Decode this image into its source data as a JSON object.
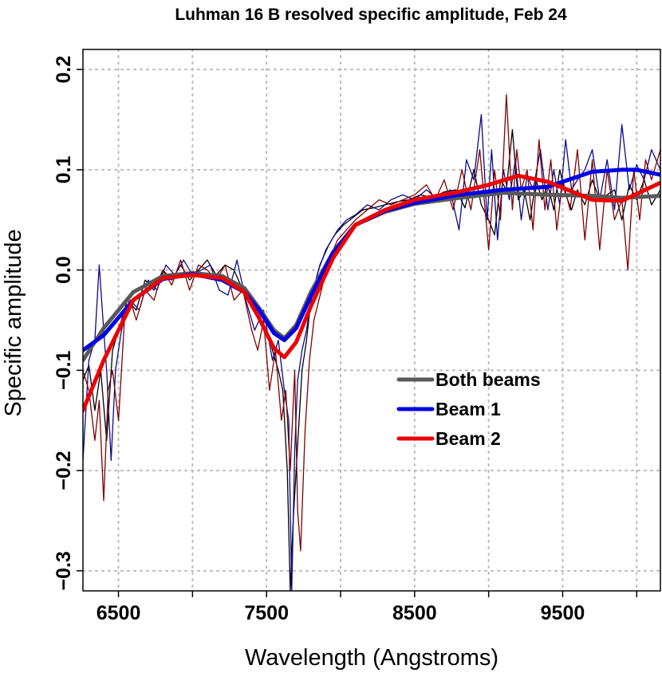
{
  "chart_data": {
    "type": "line",
    "title": "Luhman 16 B resolved specific amplitude, Feb 24",
    "xlabel": "Wavelength (Angstroms)",
    "ylabel": "Specific amplitude",
    "xlim": [
      6260,
      10160
    ],
    "ylim": [
      -0.32,
      0.22
    ],
    "x_ticks": [
      6500,
      7500,
      8500,
      9500
    ],
    "x_tick_labels": [
      "6500",
      "7500",
      "8500",
      "9500"
    ],
    "x_minor_ticks": [
      7000,
      8000,
      9000,
      10000
    ],
    "y_ticks": [
      -0.3,
      -0.2,
      -0.1,
      0.0,
      0.1,
      0.2
    ],
    "y_tick_labels": [
      "−0.3",
      "−0.2",
      "−0.1",
      "0.0",
      "0.1",
      "0.2"
    ],
    "grid": true,
    "legend": {
      "placement": "center-right",
      "entries": [
        {
          "label": "Both beams",
          "color": "#595959"
        },
        {
          "label": "Beam 1",
          "color": "#0000e6"
        },
        {
          "label": "Beam 2",
          "color": "#ee0000"
        }
      ]
    },
    "series": [
      {
        "name": "Both beams",
        "color": "#595959",
        "style": "smooth-thick",
        "x": [
          6260,
          6400,
          6600,
          6800,
          7000,
          7200,
          7350,
          7450,
          7550,
          7620,
          7700,
          7800,
          7950,
          8100,
          8300,
          8500,
          8800,
          9100,
          9400,
          9700,
          9900,
          10160
        ],
        "y": [
          -0.09,
          -0.058,
          -0.022,
          -0.006,
          -0.003,
          -0.006,
          -0.018,
          -0.038,
          -0.06,
          -0.068,
          -0.055,
          -0.022,
          0.018,
          0.045,
          0.058,
          0.066,
          0.072,
          0.077,
          0.075,
          0.074,
          0.072,
          0.074
        ]
      },
      {
        "name": "Beam 1",
        "color": "#0000e6",
        "style": "smooth-thick",
        "x": [
          6260,
          6400,
          6600,
          6800,
          7000,
          7200,
          7350,
          7450,
          7550,
          7620,
          7700,
          7800,
          7950,
          8100,
          8300,
          8500,
          8800,
          9100,
          9400,
          9700,
          9900,
          10000,
          10160
        ],
        "y": [
          -0.08,
          -0.065,
          -0.03,
          -0.009,
          -0.004,
          -0.01,
          -0.022,
          -0.04,
          -0.063,
          -0.07,
          -0.058,
          -0.026,
          0.017,
          0.045,
          0.059,
          0.067,
          0.075,
          0.08,
          0.083,
          0.098,
          0.1,
          0.1,
          0.095
        ]
      },
      {
        "name": "Beam 2",
        "color": "#ee0000",
        "style": "smooth-thick",
        "x": [
          6260,
          6400,
          6600,
          6800,
          7000,
          7200,
          7350,
          7450,
          7550,
          7620,
          7700,
          7800,
          7950,
          8100,
          8300,
          8500,
          8800,
          9000,
          9200,
          9400,
          9700,
          9900,
          10160
        ],
        "y": [
          -0.14,
          -0.09,
          -0.03,
          -0.008,
          -0.005,
          -0.008,
          -0.022,
          -0.048,
          -0.078,
          -0.087,
          -0.072,
          -0.036,
          0.012,
          0.045,
          0.06,
          0.07,
          0.078,
          0.085,
          0.094,
          0.088,
          0.07,
          0.069,
          0.087
        ]
      },
      {
        "name": "",
        "color": "#000000",
        "style": "raw-thin",
        "x": [
          6260,
          6300,
          6340,
          6380,
          6420,
          6460,
          6500,
          6560,
          6620,
          6680,
          6740,
          6800,
          6860,
          6920,
          6980,
          7040,
          7100,
          7160,
          7220,
          7280,
          7340,
          7400,
          7450,
          7500,
          7540,
          7580,
          7610,
          7640,
          7660,
          7680,
          7700,
          7720,
          7740,
          7770,
          7800,
          7850,
          7900,
          7960,
          8020,
          8080,
          8150,
          8220,
          8300,
          8380,
          8460,
          8540,
          8620,
          8700,
          8780,
          8840,
          8900,
          8950,
          9000,
          9040,
          9080,
          9120,
          9160,
          9200,
          9240,
          9280,
          9320,
          9360,
          9400,
          9440,
          9480,
          9520,
          9560,
          9600,
          9650,
          9700,
          9750,
          9800,
          9850,
          9900,
          9950,
          10000,
          10050,
          10100,
          10160
        ],
        "y": [
          -0.11,
          -0.095,
          -0.14,
          -0.1,
          -0.17,
          -0.08,
          -0.06,
          -0.03,
          -0.04,
          -0.01,
          -0.02,
          0.0,
          -0.01,
          0.005,
          -0.01,
          0.0,
          0.01,
          -0.005,
          0.005,
          0.0,
          -0.02,
          -0.03,
          -0.05,
          -0.06,
          -0.08,
          -0.1,
          -0.12,
          -0.2,
          -0.32,
          -0.25,
          -0.2,
          -0.15,
          -0.1,
          -0.07,
          -0.03,
          0.0,
          0.02,
          0.035,
          0.045,
          0.052,
          0.06,
          0.062,
          0.065,
          0.068,
          0.07,
          0.075,
          0.072,
          0.078,
          0.08,
          0.062,
          0.1,
          0.065,
          0.05,
          0.035,
          0.09,
          0.08,
          0.14,
          0.07,
          0.08,
          0.05,
          0.09,
          0.07,
          0.085,
          0.06,
          0.1,
          0.075,
          0.06,
          0.08,
          0.065,
          0.09,
          0.07,
          0.075,
          0.08,
          0.05,
          0.085,
          0.07,
          0.09,
          0.065,
          0.08
        ]
      },
      {
        "name": "",
        "color": "#0a0a8c",
        "style": "raw-thin",
        "x": [
          6260,
          6300,
          6340,
          6370,
          6400,
          6420,
          6450,
          6480,
          6520,
          6580,
          6640,
          6700,
          6760,
          6820,
          6880,
          6940,
          7000,
          7060,
          7120,
          7180,
          7240,
          7300,
          7360,
          7420,
          7480,
          7540,
          7580,
          7620,
          7650,
          7670,
          7690,
          7710,
          7740,
          7770,
          7800,
          7860,
          7920,
          7980,
          8040,
          8100,
          8180,
          8260,
          8340,
          8420,
          8500,
          8580,
          8660,
          8740,
          8800,
          8850,
          8900,
          8950,
          8990,
          9020,
          9060,
          9100,
          9140,
          9180,
          9220,
          9260,
          9300,
          9350,
          9400,
          9440,
          9480,
          9520,
          9560,
          9600,
          9650,
          9700,
          9750,
          9800,
          9850,
          9900,
          9950,
          10000,
          10050,
          10100,
          10160
        ],
        "y": [
          -0.19,
          -0.09,
          -0.07,
          0.005,
          -0.06,
          -0.1,
          -0.19,
          -0.1,
          -0.06,
          -0.03,
          -0.04,
          -0.01,
          -0.02,
          0.005,
          -0.005,
          0.01,
          -0.005,
          0.0,
          0.005,
          -0.02,
          -0.025,
          0.01,
          -0.03,
          -0.06,
          -0.04,
          -0.09,
          -0.07,
          -0.12,
          -0.15,
          -0.32,
          -0.18,
          -0.11,
          -0.08,
          -0.06,
          -0.03,
          0.005,
          0.025,
          0.04,
          0.05,
          0.055,
          0.065,
          0.06,
          0.07,
          0.075,
          0.07,
          0.08,
          0.07,
          0.08,
          0.04,
          0.11,
          0.09,
          0.155,
          0.05,
          0.12,
          0.03,
          0.1,
          0.07,
          0.11,
          0.05,
          0.095,
          0.08,
          0.12,
          0.06,
          0.1,
          0.065,
          0.13,
          0.08,
          0.09,
          0.1,
          0.12,
          0.07,
          0.11,
          0.06,
          0.145,
          0.08,
          0.105,
          0.09,
          0.12,
          0.1
        ]
      },
      {
        "name": "",
        "color": "#800000",
        "style": "raw-thin",
        "x": [
          6260,
          6300,
          6340,
          6370,
          6400,
          6430,
          6460,
          6500,
          6540,
          6580,
          6620,
          6680,
          6740,
          6800,
          6860,
          6920,
          6980,
          7040,
          7100,
          7160,
          7220,
          7280,
          7340,
          7400,
          7440,
          7480,
          7520,
          7560,
          7600,
          7630,
          7660,
          7690,
          7710,
          7730,
          7760,
          7790,
          7820,
          7870,
          7920,
          7980,
          8040,
          8100,
          8180,
          8260,
          8340,
          8420,
          8500,
          8580,
          8640,
          8700,
          8760,
          8820,
          8880,
          8940,
          9000,
          9040,
          9080,
          9120,
          9160,
          9190,
          9220,
          9260,
          9300,
          9340,
          9380,
          9420,
          9460,
          9500,
          9550,
          9600,
          9650,
          9700,
          9750,
          9800,
          9850,
          9900,
          9940,
          9980,
          10020,
          10060,
          10100,
          10160
        ],
        "y": [
          -0.1,
          -0.12,
          -0.17,
          -0.13,
          -0.23,
          -0.12,
          -0.1,
          -0.15,
          -0.05,
          -0.03,
          -0.05,
          -0.02,
          -0.03,
          0.0,
          -0.015,
          0.01,
          -0.02,
          0.005,
          0.0,
          -0.01,
          0.005,
          -0.03,
          -0.02,
          -0.06,
          -0.08,
          -0.05,
          -0.12,
          -0.08,
          -0.15,
          -0.12,
          -0.2,
          -0.1,
          -0.24,
          -0.28,
          -0.16,
          -0.09,
          -0.05,
          -0.02,
          0.01,
          0.03,
          0.04,
          0.05,
          0.06,
          0.07,
          0.065,
          0.07,
          0.075,
          0.085,
          0.07,
          0.09,
          0.06,
          0.1,
          0.06,
          0.12,
          0.02,
          0.1,
          0.05,
          0.175,
          0.06,
          0.12,
          0.08,
          0.1,
          0.04,
          0.13,
          0.06,
          0.11,
          0.04,
          0.09,
          0.06,
          0.12,
          0.03,
          0.11,
          0.02,
          0.1,
          0.05,
          0.07,
          0.0,
          0.1,
          0.05,
          0.11,
          0.09,
          0.12
        ]
      }
    ]
  }
}
